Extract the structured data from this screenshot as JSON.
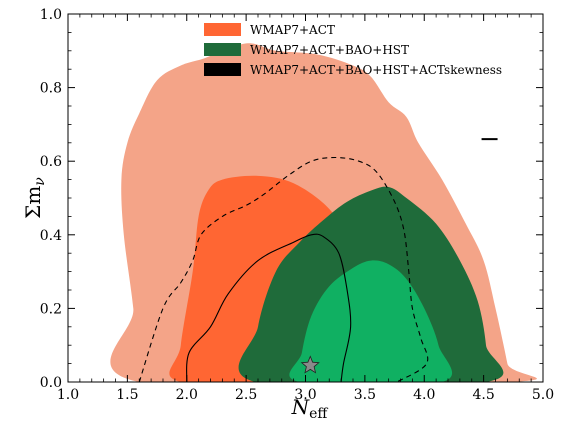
{
  "chart_data": {
    "type": "contour",
    "title": "",
    "xlabel": "N",
    "xlabel_sub": "eff",
    "ylabel": "Σm",
    "ylabel_sub": "ν",
    "xlim": [
      1.0,
      5.0
    ],
    "ylim": [
      0.0,
      1.0
    ],
    "xticks": [
      "1.0",
      "1.5",
      "2.0",
      "2.5",
      "3.0",
      "3.5",
      "4.0",
      "4.5",
      "5.0"
    ],
    "yticks": [
      "0.0",
      "0.2",
      "0.4",
      "0.6",
      "0.8",
      "1.0"
    ],
    "grid": false,
    "legend": {
      "placement": "top-center",
      "entries": [
        {
          "label": "WMAP7+ACT",
          "color": "#ff6633"
        },
        {
          "label": "WMAP7+ACT+BAO+HST",
          "color": "#1f6b3a"
        },
        {
          "label": "WMAP7+ACT+BAO+HST+ACTskewness",
          "color": "#000000"
        }
      ]
    },
    "series": [
      {
        "name": "WMAP7+ACT",
        "level": "95%",
        "color": "#f4a488",
        "points": [
          [
            1.6,
            0.0
          ],
          [
            1.55,
            0.2
          ],
          [
            1.47,
            0.4
          ],
          [
            1.45,
            0.55
          ],
          [
            1.5,
            0.65
          ],
          [
            1.6,
            0.73
          ],
          [
            1.75,
            0.82
          ],
          [
            1.95,
            0.86
          ],
          [
            2.15,
            0.88
          ],
          [
            2.5,
            0.92
          ],
          [
            2.75,
            0.9
          ],
          [
            3.1,
            0.89
          ],
          [
            3.4,
            0.86
          ],
          [
            3.55,
            0.83
          ],
          [
            3.7,
            0.76
          ],
          [
            3.85,
            0.72
          ],
          [
            3.95,
            0.65
          ],
          [
            4.15,
            0.55
          ],
          [
            4.35,
            0.43
          ],
          [
            4.5,
            0.33
          ],
          [
            4.6,
            0.2
          ],
          [
            4.7,
            0.05
          ],
          [
            4.72,
            0.0
          ]
        ]
      },
      {
        "name": "WMAP7+ACT",
        "level": "68%",
        "color": "#ff6633",
        "points": [
          [
            1.95,
            0.0
          ],
          [
            1.95,
            0.1
          ],
          [
            2.05,
            0.3
          ],
          [
            2.1,
            0.45
          ],
          [
            2.18,
            0.52
          ],
          [
            2.3,
            0.55
          ],
          [
            2.6,
            0.56
          ],
          [
            2.9,
            0.54
          ],
          [
            3.2,
            0.47
          ],
          [
            3.35,
            0.38
          ],
          [
            3.3,
            0.2
          ],
          [
            3.2,
            0.0
          ]
        ]
      },
      {
        "name": "WMAP7+ACT+BAO+HST",
        "level": "95%",
        "color": "#1f6b3a",
        "points": [
          [
            2.58,
            0.0
          ],
          [
            2.6,
            0.15
          ],
          [
            2.75,
            0.3
          ],
          [
            2.95,
            0.38
          ],
          [
            3.15,
            0.44
          ],
          [
            3.35,
            0.49
          ],
          [
            3.55,
            0.52
          ],
          [
            3.7,
            0.53
          ],
          [
            3.85,
            0.5
          ],
          [
            4.1,
            0.43
          ],
          [
            4.3,
            0.33
          ],
          [
            4.45,
            0.22
          ],
          [
            4.52,
            0.1
          ],
          [
            4.52,
            0.0
          ]
        ]
      },
      {
        "name": "WMAP7+ACT+BAO+HST",
        "level": "68%",
        "color": "#10b062",
        "points": [
          [
            2.95,
            0.0
          ],
          [
            2.97,
            0.08
          ],
          [
            3.05,
            0.18
          ],
          [
            3.2,
            0.26
          ],
          [
            3.4,
            0.31
          ],
          [
            3.55,
            0.33
          ],
          [
            3.7,
            0.32
          ],
          [
            3.85,
            0.28
          ],
          [
            4.0,
            0.2
          ],
          [
            4.12,
            0.1
          ],
          [
            4.15,
            0.0
          ]
        ]
      },
      {
        "name": "WMAP7+ACT+BAO+HST+ACTskewness",
        "level": "68%",
        "color": "#000000",
        "dashed": false,
        "points": [
          [
            2.0,
            0.0
          ],
          [
            2.02,
            0.08
          ],
          [
            2.2,
            0.15
          ],
          [
            2.35,
            0.24
          ],
          [
            2.6,
            0.33
          ],
          [
            2.9,
            0.38
          ],
          [
            3.05,
            0.4
          ],
          [
            3.15,
            0.395
          ],
          [
            3.28,
            0.35
          ],
          [
            3.35,
            0.25
          ],
          [
            3.38,
            0.15
          ],
          [
            3.32,
            0.05
          ],
          [
            3.3,
            0.0
          ]
        ]
      },
      {
        "name": "WMAP7+ACT+BAO+HST+ACTskewness",
        "level": "95%",
        "color": "#000000",
        "dashed": true,
        "points": [
          [
            1.6,
            0.0
          ],
          [
            1.8,
            0.2
          ],
          [
            1.95,
            0.27
          ],
          [
            2.05,
            0.33
          ],
          [
            2.12,
            0.4
          ],
          [
            2.3,
            0.45
          ],
          [
            2.5,
            0.48
          ],
          [
            2.65,
            0.51
          ],
          [
            2.85,
            0.56
          ],
          [
            3.05,
            0.6
          ],
          [
            3.25,
            0.61
          ],
          [
            3.45,
            0.6
          ],
          [
            3.6,
            0.57
          ],
          [
            3.75,
            0.49
          ],
          [
            3.83,
            0.41
          ],
          [
            3.87,
            0.3
          ],
          [
            3.9,
            0.2
          ],
          [
            3.97,
            0.12
          ],
          [
            4.02,
            0.05
          ],
          [
            3.77,
            0.0
          ]
        ]
      }
    ],
    "markers": [
      {
        "shape": "star",
        "x": 3.04,
        "y": 0.045,
        "color": "#8a8a8a"
      },
      {
        "shape": "dash",
        "x": 4.55,
        "y": 0.66,
        "color": "#000000"
      }
    ]
  }
}
